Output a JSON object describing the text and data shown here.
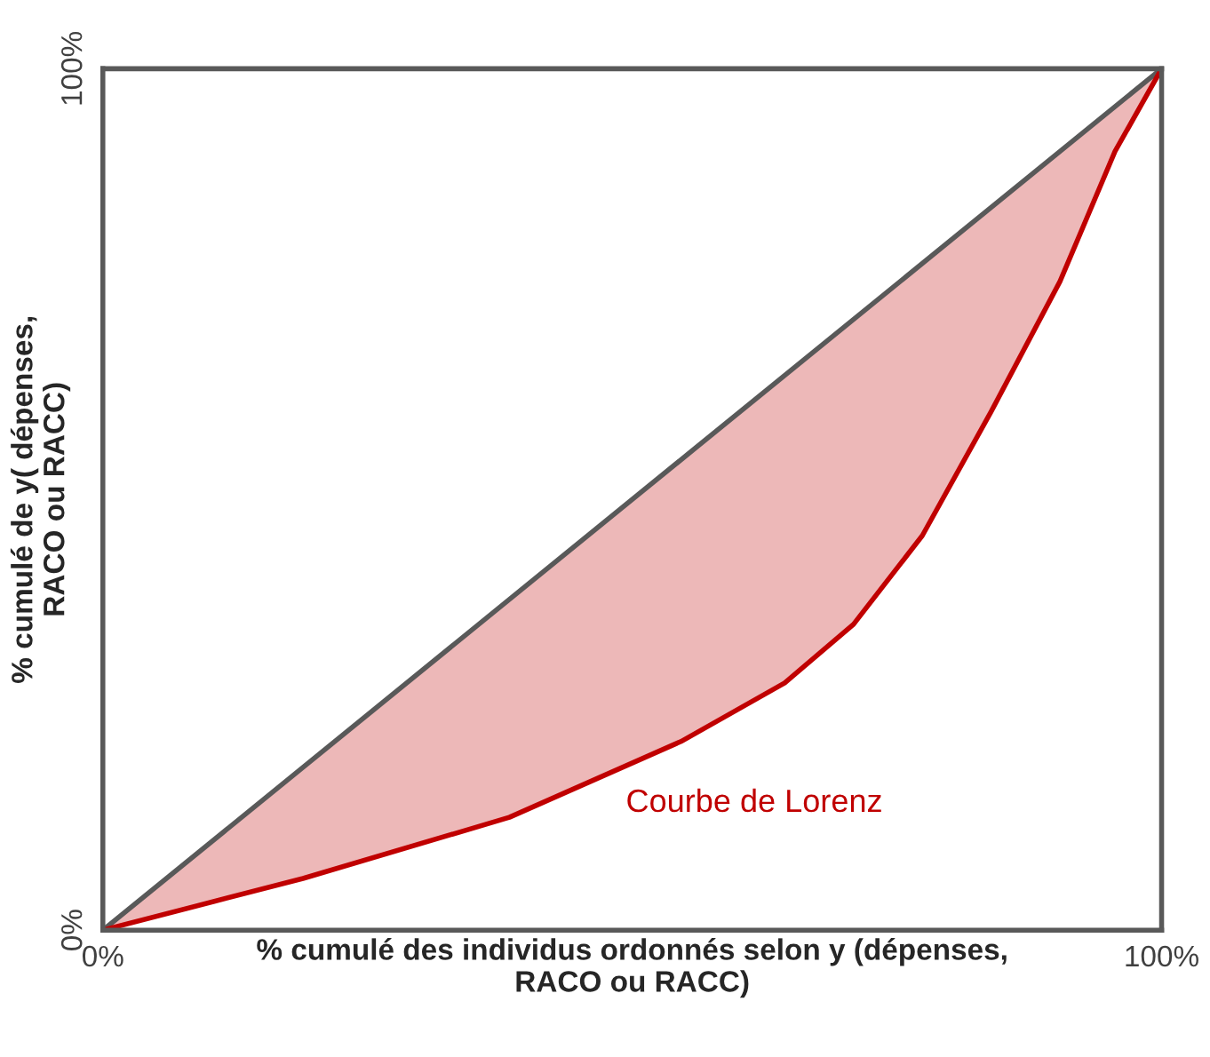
{
  "chart_data": {
    "type": "line",
    "xlabel": "% cumulé des individus ordonnés selon y (dépenses,\nRACO ou RACC)",
    "ylabel": "% cumulé de y( dépenses,\nRACO ou RACC)",
    "xlim": [
      0,
      100
    ],
    "ylim": [
      0,
      100
    ],
    "xticks": [
      {
        "value": 0,
        "label": "0%"
      },
      {
        "value": 100,
        "label": "100%"
      }
    ],
    "yticks": [
      {
        "value": 0,
        "label": "0%"
      },
      {
        "value": 100,
        "label": "100%"
      }
    ],
    "legend": false,
    "marker": "none",
    "line_style": "solid",
    "series": [
      {
        "color": "#595959",
        "x": [
          0,
          100
        ],
        "values": [
          0,
          100
        ]
      },
      {
        "color": "#c00000",
        "x": [
          0,
          18.9,
          38.4,
          54.6,
          64.4,
          70.9,
          77.4,
          83.9,
          90.4,
          95.6,
          100
        ],
        "values": [
          0,
          6.0,
          13.1,
          21.9,
          28.7,
          35.5,
          45.8,
          60.2,
          75.3,
          90.4,
          100
        ],
        "upper": [
          0,
          18.9,
          38.4,
          54.6,
          64.4,
          70.9,
          77.4,
          83.9,
          90.4,
          95.6,
          100
        ],
        "lower": [
          0,
          6.0,
          13.1,
          21.9,
          28.7,
          35.5,
          45.8,
          60.2,
          75.3,
          90.4,
          100
        ]
      }
    ],
    "annotations": [
      "Courbe de Lorenz"
    ]
  }
}
